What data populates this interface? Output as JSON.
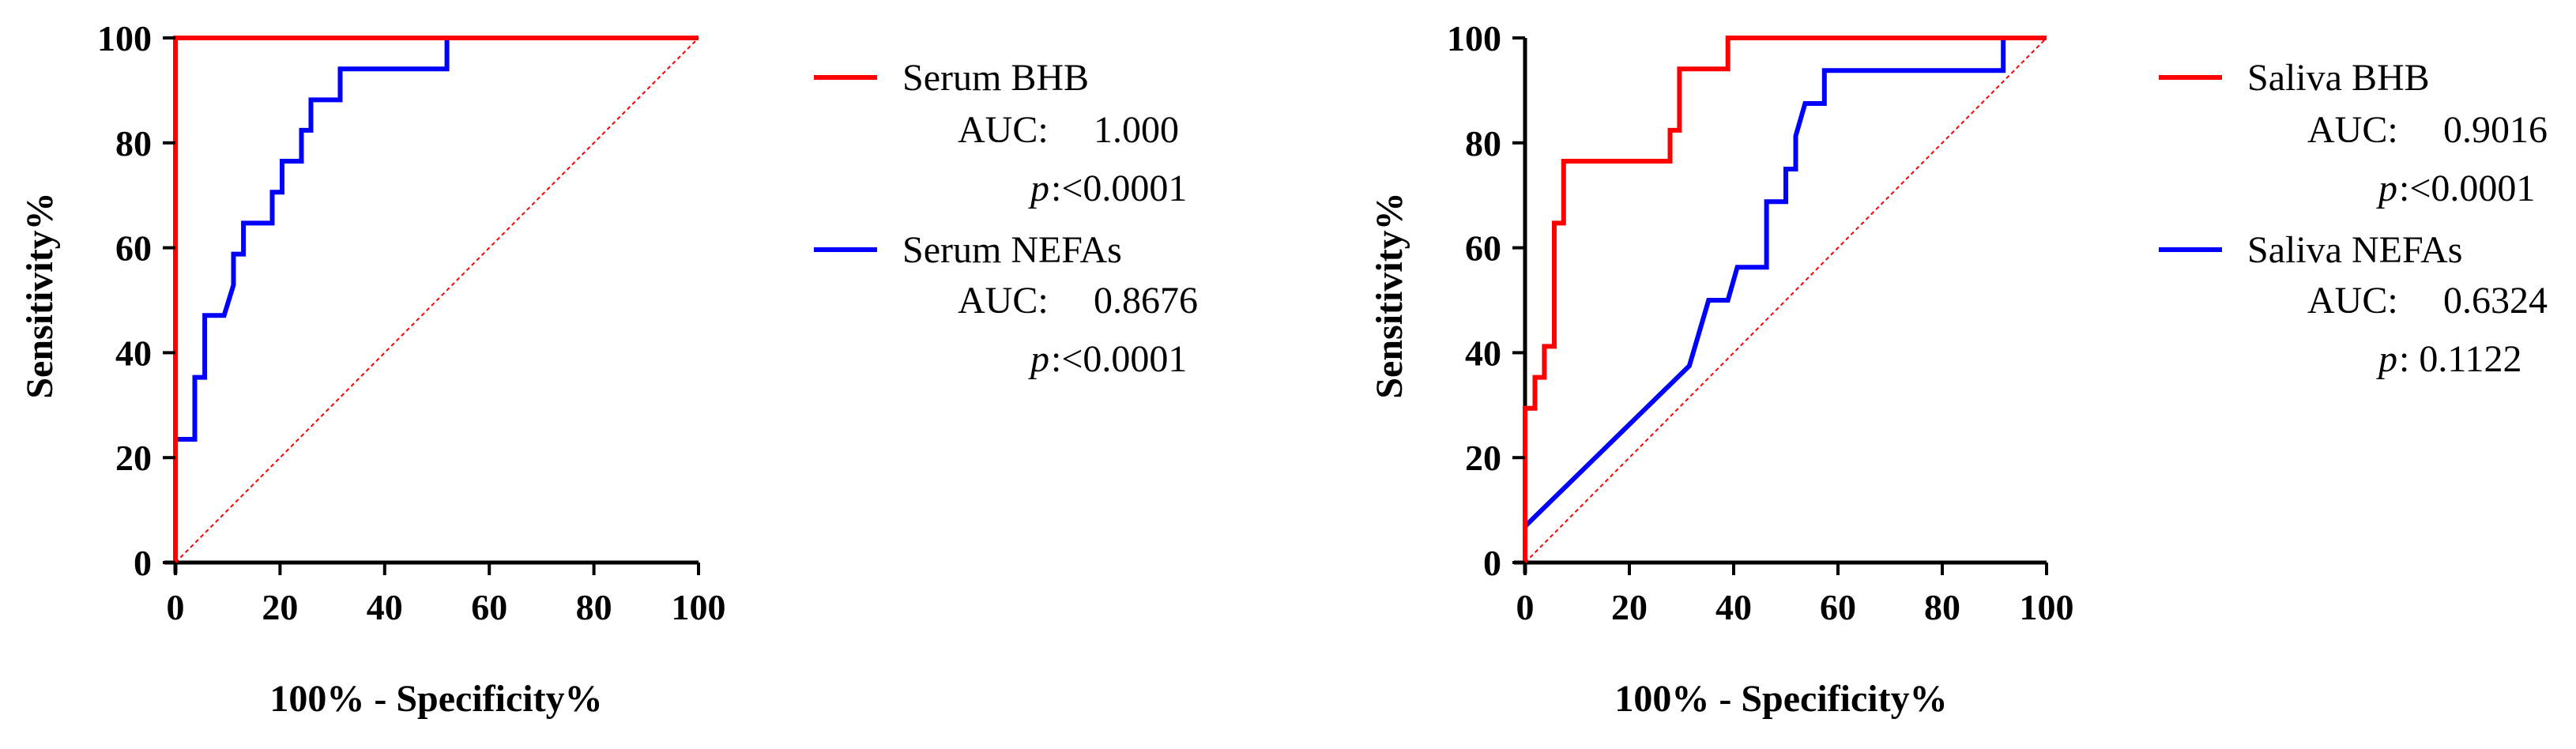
{
  "colors": {
    "red": "#ff0000",
    "blue": "#0000ff",
    "axis": "#000000"
  },
  "chart_data": [
    {
      "type": "line",
      "xlabel": "100% - Specificity%",
      "ylabel": "Sensitivity%",
      "xlim": [
        0,
        100
      ],
      "ylim": [
        0,
        100
      ],
      "xticks": [
        "0",
        "20",
        "40",
        "60",
        "80",
        "100"
      ],
      "yticks": [
        "0",
        "20",
        "40",
        "60",
        "80",
        "100"
      ],
      "reference_line": [
        [
          0,
          0
        ],
        [
          100,
          100
        ]
      ],
      "series": [
        {
          "name": "Serum BHB",
          "color": "#ff0000",
          "points": [
            [
              0,
              0
            ],
            [
              0,
              100
            ],
            [
              100,
              100
            ]
          ],
          "auc_label": "AUC:",
          "auc": "1.000",
          "p_label": "p",
          "p_value": ":<0.0001"
        },
        {
          "name": "Serum NEFAs",
          "color": "#0000ff",
          "points": [
            [
              0,
              23.5
            ],
            [
              3.7,
              23.5
            ],
            [
              3.7,
              35.3
            ],
            [
              5.6,
              35.3
            ],
            [
              5.6,
              47.1
            ],
            [
              9.3,
              47.1
            ],
            [
              11.1,
              52.9
            ],
            [
              11.1,
              58.8
            ],
            [
              13,
              58.8
            ],
            [
              13,
              64.7
            ],
            [
              18.5,
              64.7
            ],
            [
              18.5,
              70.6
            ],
            [
              20.4,
              70.6
            ],
            [
              20.4,
              76.5
            ],
            [
              24.1,
              76.5
            ],
            [
              24.1,
              82.4
            ],
            [
              25.9,
              82.4
            ],
            [
              25.9,
              88.2
            ],
            [
              31.5,
              88.2
            ],
            [
              31.5,
              94.1
            ],
            [
              51.9,
              94.1
            ],
            [
              51.9,
              100
            ],
            [
              100,
              100
            ]
          ],
          "auc_label": "AUC:",
          "auc": "0.8676",
          "p_label": "p",
          "p_value": ":<0.0001"
        }
      ]
    },
    {
      "type": "line",
      "xlabel": "100% - Specificity%",
      "ylabel": "Sensitivity%",
      "xlim": [
        0,
        100
      ],
      "ylim": [
        0,
        100
      ],
      "xticks": [
        "0",
        "20",
        "40",
        "60",
        "80",
        "100"
      ],
      "yticks": [
        "0",
        "20",
        "40",
        "60",
        "80",
        "100"
      ],
      "reference_line": [
        [
          0,
          0
        ],
        [
          100,
          100
        ]
      ],
      "series": [
        {
          "name": "Saliva BHB",
          "color": "#ff0000",
          "points": [
            [
              0,
              0
            ],
            [
              0,
              29.4
            ],
            [
              1.9,
              29.4
            ],
            [
              1.9,
              35.3
            ],
            [
              3.7,
              35.3
            ],
            [
              3.7,
              41.2
            ],
            [
              5.6,
              41.2
            ],
            [
              5.6,
              64.7
            ],
            [
              7.4,
              64.7
            ],
            [
              7.4,
              76.5
            ],
            [
              27.8,
              76.5
            ],
            [
              27.8,
              82.4
            ],
            [
              29.6,
              82.4
            ],
            [
              29.6,
              94.1
            ],
            [
              38.9,
              94.1
            ],
            [
              38.9,
              100
            ],
            [
              100,
              100
            ]
          ],
          "auc_label": "AUC:",
          "auc": "0.9016",
          "p_label": "p",
          "p_value": ":<0.0001"
        },
        {
          "name": "Saliva NEFAs",
          "color": "#0000ff",
          "points": [
            [
              0,
              6.9
            ],
            [
              31.5,
              37.5
            ],
            [
              35.2,
              50
            ],
            [
              38.9,
              50
            ],
            [
              40.7,
              56.3
            ],
            [
              46.3,
              56.3
            ],
            [
              46.3,
              68.8
            ],
            [
              50,
              68.8
            ],
            [
              50,
              75
            ],
            [
              51.9,
              75
            ],
            [
              51.9,
              81.3
            ],
            [
              53.7,
              87.5
            ],
            [
              57.4,
              87.5
            ],
            [
              57.4,
              93.8
            ],
            [
              91.7,
              93.8
            ],
            [
              91.7,
              100
            ],
            [
              100,
              100
            ]
          ],
          "auc_label": "AUC:",
          "auc": "0.6324",
          "p_label": "p",
          "p_value": ":   0.1122"
        }
      ]
    }
  ]
}
